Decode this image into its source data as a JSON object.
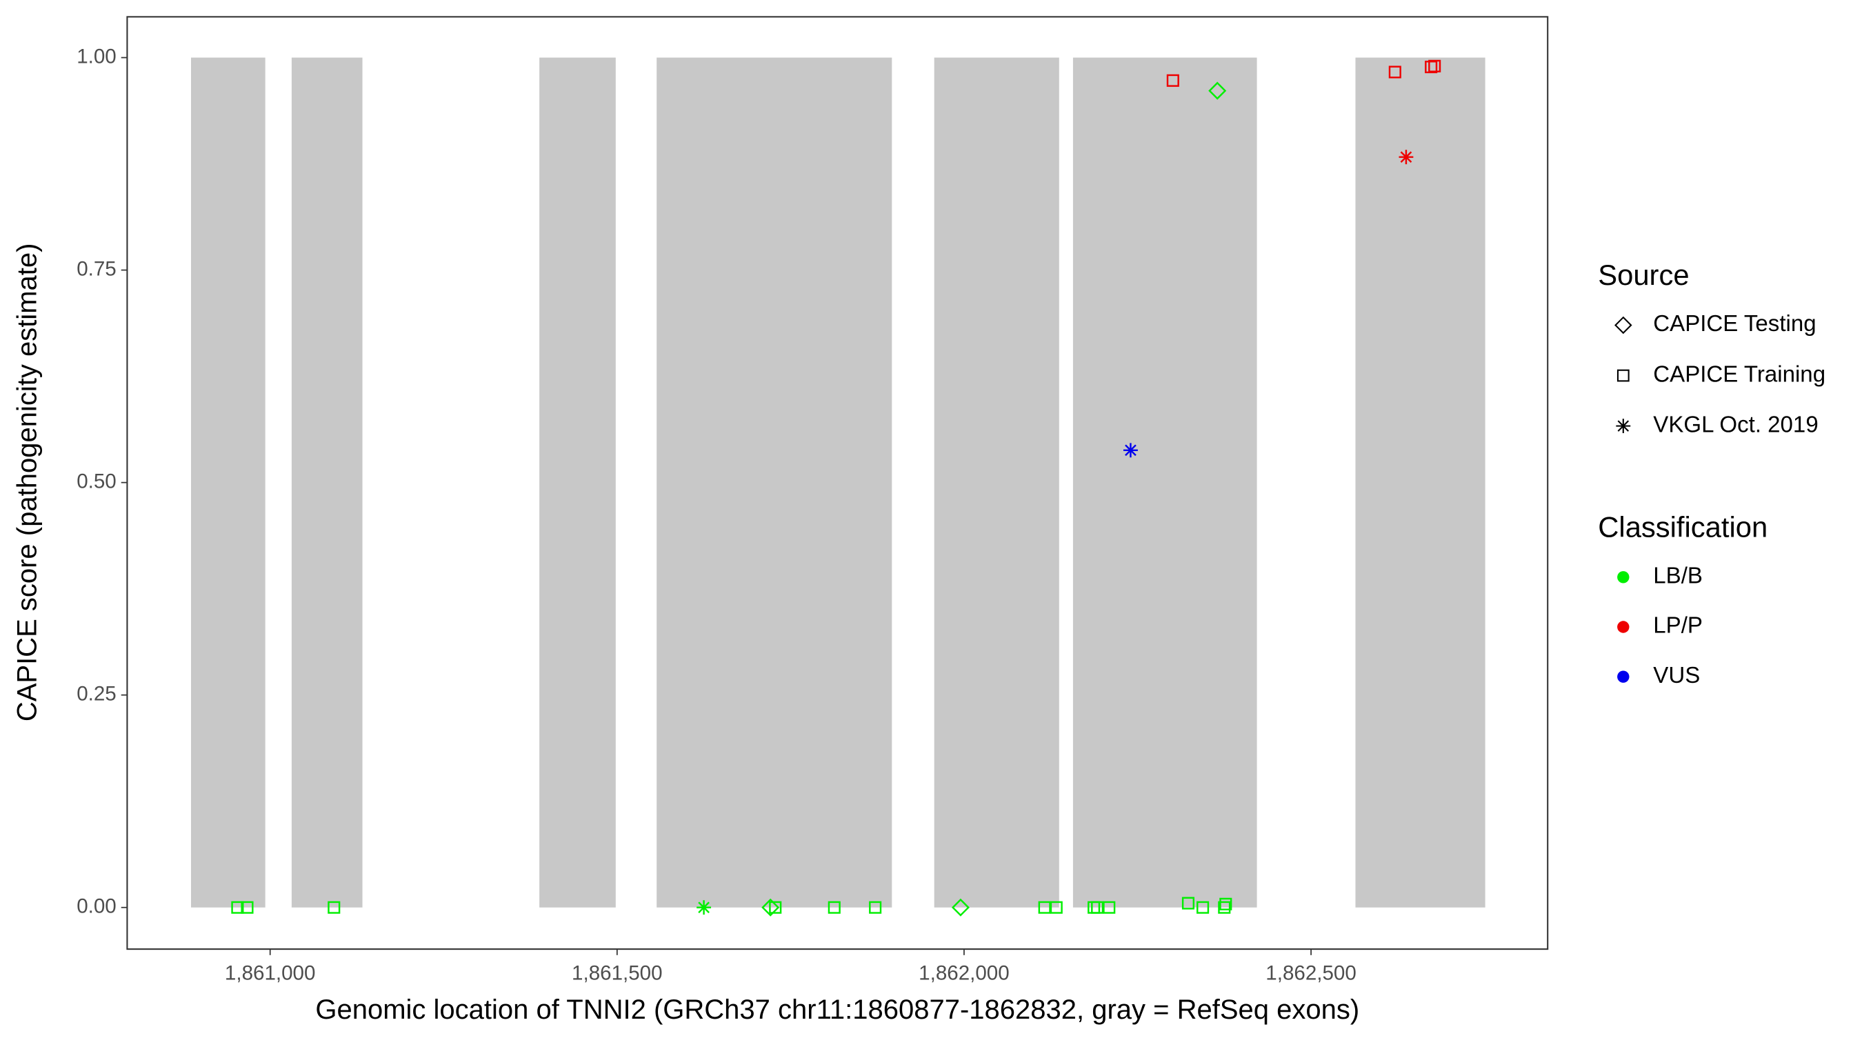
{
  "chart_data": {
    "type": "scatter",
    "xlabel": "Genomic location of TNNI2 (GRCh37 chr11:1860877-1862832, gray = RefSeq exons)",
    "ylabel": "CAPICE score (pathogenicity estimate)",
    "xlim": [
      1860794,
      1862841
    ],
    "ylim": [
      -0.049,
      1.048
    ],
    "xticks": [
      {
        "value": 1861000,
        "label": "1,861,000"
      },
      {
        "value": 1861500,
        "label": "1,861,500"
      },
      {
        "value": 1862000,
        "label": "1,862,000"
      },
      {
        "value": 1862500,
        "label": "1,862,500"
      }
    ],
    "yticks": [
      {
        "value": 0,
        "label": "0.00"
      },
      {
        "value": 0.25,
        "label": "0.25"
      },
      {
        "value": 0.5,
        "label": "0.50"
      },
      {
        "value": 0.75,
        "label": "0.75"
      },
      {
        "value": 1,
        "label": "1.00"
      }
    ],
    "exons": {
      "color": "#c8c8c8",
      "ranges": [
        [
          1860886,
          1860993
        ],
        [
          1861031,
          1861133
        ],
        [
          1861388,
          1861498
        ],
        [
          1861557,
          1861896
        ],
        [
          1861957,
          1862137
        ],
        [
          1862157,
          1862422
        ],
        [
          1862564,
          1862751
        ]
      ]
    },
    "shape_legend": {
      "title": "Source",
      "items": [
        {
          "name": "CAPICE Testing",
          "shape": "diamond"
        },
        {
          "name": "CAPICE Training",
          "shape": "square"
        },
        {
          "name": "VKGL Oct. 2019",
          "shape": "star"
        }
      ]
    },
    "color_legend_title": "Classification",
    "series": [
      {
        "name": "LB/B",
        "color": "#00ee00",
        "x": [
          1860953,
          1860967,
          1861092,
          1861728,
          1861813,
          1861872,
          1862116,
          1862133,
          1862187,
          1862192,
          1862209,
          1862323,
          1862344,
          1862375,
          1862377,
          1861721,
          1861995,
          1862365,
          1861625
        ],
        "values": [
          0,
          0,
          0,
          0,
          0,
          0,
          0,
          0,
          0,
          0,
          0,
          0.005,
          0,
          0,
          0.004,
          0,
          0,
          0.961,
          0
        ],
        "shapes": [
          "square",
          "square",
          "square",
          "square",
          "square",
          "square",
          "square",
          "square",
          "square",
          "square",
          "square",
          "square",
          "square",
          "square",
          "square",
          "diamond",
          "diamond",
          "diamond",
          "star"
        ]
      },
      {
        "name": "LP/P",
        "color": "#ee0000",
        "x": [
          1862301,
          1862621,
          1862673,
          1862678,
          1862637
        ],
        "values": [
          0.973,
          0.983,
          0.989,
          0.99,
          0.883
        ],
        "shapes": [
          "square",
          "square",
          "square",
          "square",
          "star"
        ]
      },
      {
        "name": "VUS",
        "color": "#0000ee",
        "x": [
          1862240
        ],
        "values": [
          0.538
        ],
        "shapes": [
          "star"
        ]
      }
    ]
  }
}
